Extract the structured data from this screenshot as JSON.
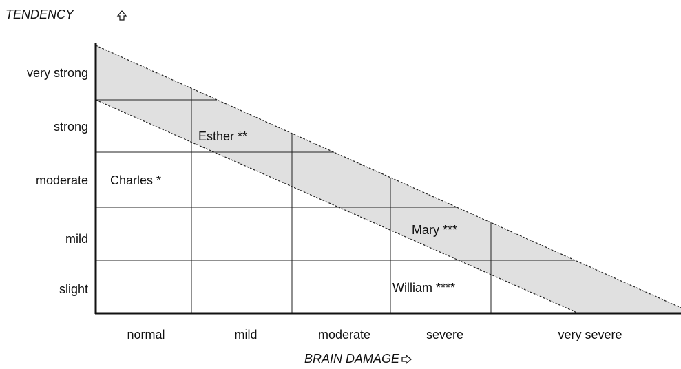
{
  "axes": {
    "y_label": "TENDENCY",
    "x_label": "BRAIN DAMAGE"
  },
  "y_levels": [
    "very strong",
    "strong",
    "moderate",
    "mild",
    "slight"
  ],
  "x_levels": [
    "normal",
    "mild",
    "moderate",
    "severe",
    "very severe"
  ],
  "cases": [
    "Charles *",
    "Esther **",
    "Mary ***",
    "William ****"
  ]
}
